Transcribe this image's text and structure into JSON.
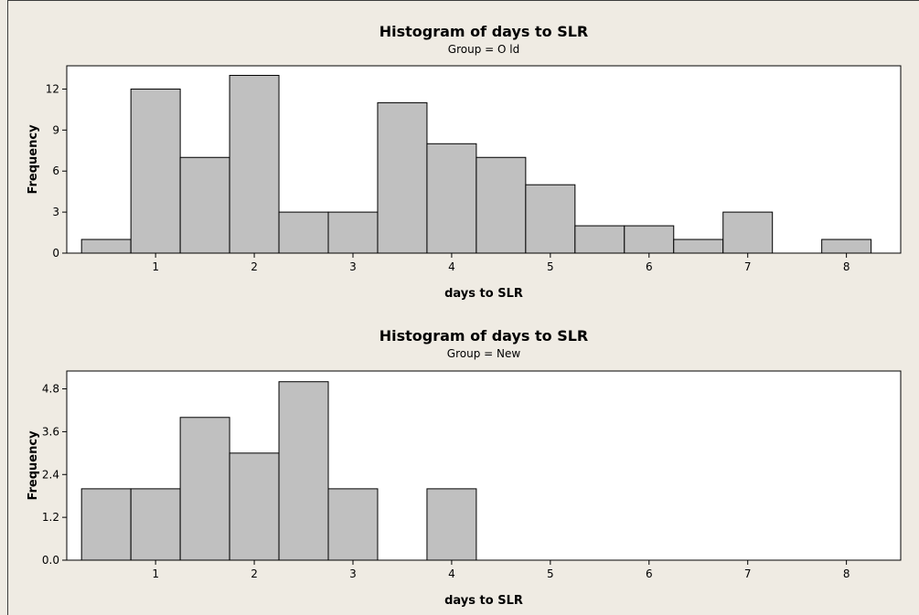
{
  "chart_data": [
    {
      "type": "bar",
      "title": "Histogram of days to SLR",
      "subtitle": "Group = O ld",
      "xlabel": "days to SLR",
      "ylabel": "Frequency",
      "bin_width": 0.5,
      "bin_centers": [
        0.5,
        1.0,
        1.5,
        2.0,
        2.5,
        3.0,
        3.5,
        4.0,
        4.5,
        5.0,
        5.5,
        6.0,
        6.5,
        7.0,
        7.5,
        8.0
      ],
      "values": [
        1,
        12,
        7,
        13,
        3,
        3,
        11,
        8,
        7,
        5,
        2,
        2,
        1,
        3,
        0,
        1
      ],
      "xlim": [
        0.1,
        8.55
      ],
      "ylim": [
        0,
        13.7
      ],
      "xticks": [
        1,
        2,
        3,
        4,
        5,
        6,
        7,
        8
      ],
      "yticks": [
        0,
        3,
        6,
        9,
        12
      ],
      "ytick_labels": [
        "0",
        "3",
        "6",
        "9",
        "12"
      ]
    },
    {
      "type": "bar",
      "title": "Histogram of days to SLR",
      "subtitle": "Group = New",
      "xlabel": "days to SLR",
      "ylabel": "Frequency",
      "bin_width": 0.5,
      "bin_centers": [
        0.5,
        1.0,
        1.5,
        2.0,
        2.5,
        3.0,
        3.5,
        4.0,
        4.5,
        5.0,
        5.5,
        6.0,
        6.5,
        7.0,
        7.5,
        8.0
      ],
      "values": [
        2,
        2,
        4,
        3,
        5,
        2,
        0,
        2,
        0,
        0,
        0,
        0,
        0,
        0,
        0,
        0
      ],
      "xlim": [
        0.1,
        8.55
      ],
      "ylim": [
        0,
        5.3
      ],
      "xticks": [
        1,
        2,
        3,
        4,
        5,
        6,
        7,
        8
      ],
      "yticks": [
        0,
        1.2,
        2.4,
        3.6,
        4.8
      ],
      "ytick_labels": [
        "0.0",
        "1.2",
        "2.4",
        "3.6",
        "4.8"
      ]
    }
  ]
}
